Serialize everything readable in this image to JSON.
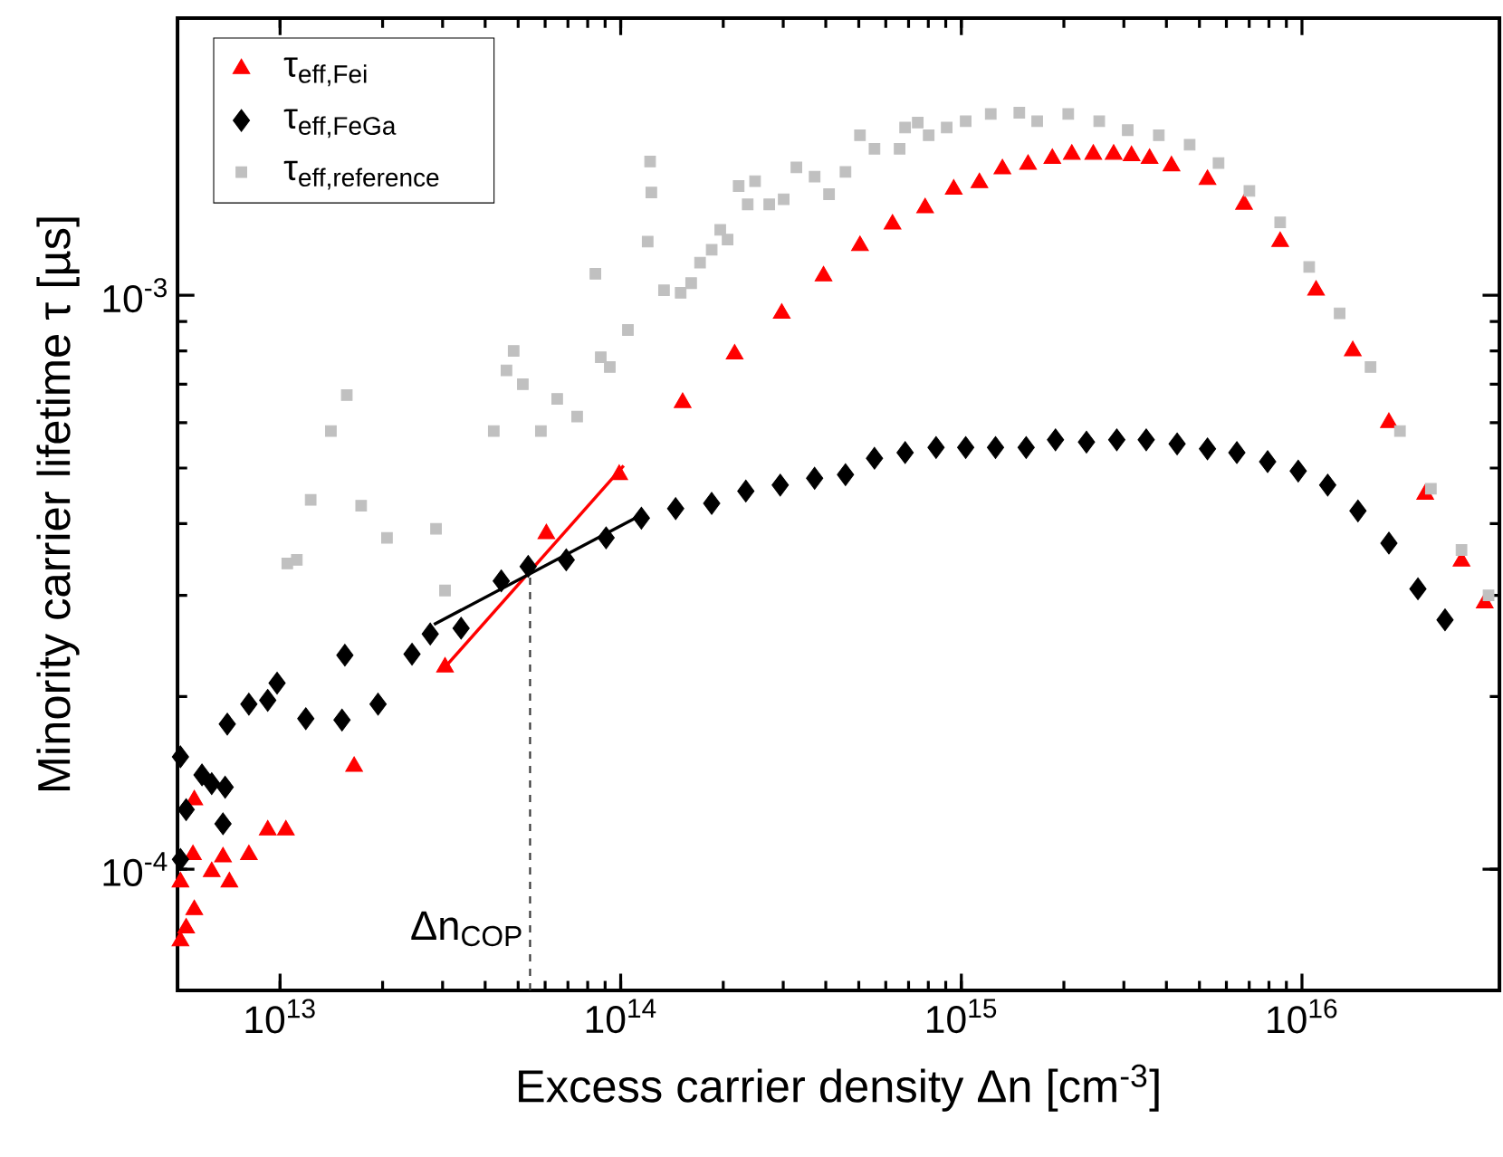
{
  "chart_data": {
    "type": "scatter",
    "xlabel": "Excess carrier density Δn [cm$^{-3}$]",
    "ylabel": "Minority carrier lifetime τ [µs]",
    "log": "xy",
    "xlim": [
      5000000000000.0,
      3.8e+16
    ],
    "ylim": [
      6.15e-05,
      0.00304
    ],
    "xticks": [
      {
        "value": 10000000000000.0,
        "label": "10$^{13}$"
      },
      {
        "value": 100000000000000.0,
        "label": "10$^{14}$"
      },
      {
        "value": 1000000000000000.0,
        "label": "10$^{15}$"
      },
      {
        "value": 1e+16,
        "label": "10$^{16}$"
      }
    ],
    "yticks": [
      {
        "value": 0.0001,
        "label": "10$^{-4}$"
      },
      {
        "value": 0.001,
        "label": "10$^{-3}$"
      }
    ],
    "legend": "top left",
    "series": [
      {
        "name": "\\text{τ}_{\\text{eff,Fei}}",
        "color": "#ff0000",
        "marker": "triangle",
        "x": [
          5100000000000.0,
          5300000000000.0,
          5600000000000.0,
          5100000000000.0,
          5550000000000.0,
          5600000000000.0,
          6300000000000.0,
          6800000000000.0,
          7100000000000.0,
          8100000000000.0,
          9200000000000.0,
          10400000000000.0,
          16500000000000.0,
          30500000000000.0,
          60500000000000.0,
          99000000000000.0,
          152000000000000.0,
          216000000000000.0,
          297000000000000.0,
          394000000000000.0,
          504000000000000.0,
          628000000000000.0,
          783000000000000.0,
          950000000000000.0,
          1130000000000000.0,
          1320000000000000.0,
          1570000000000000.0,
          1850000000000000.0,
          2110000000000000.0,
          2440000000000000.0,
          2800000000000000.0,
          3160000000000000.0,
          3570000000000000.0,
          4140000000000000.0,
          5280000000000000.0,
          6760000000000000.0,
          8630000000000000.0,
          1.1e+16,
          1.41e+16,
          1.8e+16,
          2.3e+16,
          2.94e+16,
          3.44e+16
        ],
        "values": [
          7.5e-05,
          7.9e-05,
          8.5e-05,
          9.5e-05,
          0.000106,
          0.000132,
          9.9e-05,
          0.000105,
          9.5e-05,
          0.000106,
          0.000117,
          0.000117,
          0.000151,
          0.000225,
          0.000384,
          0.000487,
          0.00065,
          0.00079,
          0.00093,
          0.00108,
          0.00122,
          0.00133,
          0.00142,
          0.00153,
          0.00157,
          0.00166,
          0.00169,
          0.00173,
          0.00176,
          0.00176,
          0.00176,
          0.00175,
          0.00173,
          0.00168,
          0.00159,
          0.00144,
          0.00124,
          0.00102,
          0.0008,
          0.0006,
          0.00045,
          0.000344,
          0.000291
        ]
      },
      {
        "name": "\\text{τ}_{\\text{eff,FeGa}}",
        "color": "#000000",
        "marker": "diamond",
        "x": [
          5100000000000.0,
          5300000000000.0,
          5100000000000.0,
          5900000000000.0,
          6300000000000.0,
          6900000000000.0,
          6800000000000.0,
          7000000000000.0,
          8100000000000.0,
          9200000000000.0,
          9800000000000.0,
          11900000000000.0,
          15200000000000.0,
          15500000000000.0,
          19400000000000.0,
          24400000000000.0,
          27600000000000.0,
          34000000000000.0,
          44600000000000.0,
          53500000000000.0,
          69200000000000.0,
          90600000000000.0,
          115000000000000.0,
          145000000000000.0,
          185000000000000.0,
          233000000000000.0,
          294000000000000.0,
          371000000000000.0,
          457000000000000.0,
          556000000000000.0,
          684000000000000.0,
          843000000000000.0,
          1030000000000000.0,
          1260000000000000.0,
          1550000000000000.0,
          1890000000000000.0,
          2330000000000000.0,
          2860000000000000.0,
          3490000000000000.0,
          4300000000000000.0,
          5280000000000000.0,
          6440000000000000.0,
          7930000000000000.0,
          9750000000000000.0,
          1.19e+16,
          1.46e+16,
          1.8e+16,
          2.19e+16,
          2.63e+16
        ],
        "values": [
          0.000157,
          0.000127,
          0.000104,
          0.000146,
          0.000141,
          0.000139,
          0.00012,
          0.000179,
          0.000194,
          0.000197,
          0.000211,
          0.000183,
          0.000182,
          0.000236,
          0.000194,
          0.000237,
          0.000257,
          0.000263,
          0.000318,
          0.000337,
          0.000346,
          0.000378,
          0.000409,
          0.000425,
          0.000434,
          0.000456,
          0.000467,
          0.00048,
          0.000487,
          0.00052,
          0.000532,
          0.000543,
          0.000543,
          0.000543,
          0.000543,
          0.00056,
          0.000555,
          0.00056,
          0.00056,
          0.000551,
          0.00054,
          0.000532,
          0.000513,
          0.000494,
          0.000467,
          0.000421,
          0.00037,
          0.000308,
          0.000272
        ]
      },
      {
        "name": "\\text{τ}_{\\text{eff,reference}}",
        "color": "#c0c0c0",
        "marker": "square",
        "x": [
          10500000000000.0,
          11200000000000.0,
          12300000000000.0,
          14100000000000.0,
          15700000000000.0,
          17300000000000.0,
          20600000000000.0,
          28700000000000.0,
          30500000000000.0,
          42400000000000.0,
          46200000000000.0,
          48500000000000.0,
          51600000000000.0,
          58300000000000.0,
          65100000000000.0,
          74500000000000.0,
          84300000000000.0,
          87400000000000.0,
          92900000000000.0,
          105000000000000.0,
          120000000000000.0,
          122000000000000.0,
          123000000000000.0,
          134000000000000.0,
          150000000000000.0,
          161000000000000.0,
          171000000000000.0,
          185000000000000.0,
          196000000000000.0,
          206000000000000.0,
          222000000000000.0,
          236000000000000.0,
          248000000000000.0,
          273000000000000.0,
          301000000000000.0,
          328000000000000.0,
          371000000000000.0,
          409000000000000.0,
          457000000000000.0,
          504000000000000.0,
          556000000000000.0,
          659000000000000.0,
          684000000000000.0,
          745000000000000.0,
          802000000000000.0,
          906000000000000.0,
          1030000000000000.0,
          1220000000000000.0,
          1480000000000000.0,
          1670000000000000.0,
          2060000000000000.0,
          2540000000000000.0,
          3080000000000000.0,
          3800000000000000.0,
          4680000000000000.0,
          5690000000000000.0,
          7010000000000000.0,
          8630000000000000.0,
          1.05e+16,
          1.29e+16,
          1.59e+16,
          1.94e+16,
          2.39e+16,
          2.94e+16,
          3.53e+16
        ],
        "values": [
          0.000341,
          0.000346,
          0.00044,
          0.00058,
          0.00067,
          0.00043,
          0.000378,
          0.000392,
          0.000306,
          0.00058,
          0.00074,
          0.0008,
          0.0007,
          0.00058,
          0.00066,
          0.000615,
          0.00109,
          0.00078,
          0.00075,
          0.00087,
          0.00124,
          0.00171,
          0.00151,
          0.00102,
          0.00101,
          0.00105,
          0.00114,
          0.0012,
          0.0013,
          0.00125,
          0.00155,
          0.00144,
          0.00158,
          0.00144,
          0.00147,
          0.00167,
          0.00161,
          0.0015,
          0.00164,
          0.0019,
          0.0018,
          0.0018,
          0.00196,
          0.002,
          0.0019,
          0.00196,
          0.00201,
          0.00207,
          0.00208,
          0.00201,
          0.00207,
          0.00201,
          0.00194,
          0.0019,
          0.00183,
          0.0017,
          0.00152,
          0.00134,
          0.00112,
          0.00093,
          0.00075,
          0.00058,
          0.00046,
          0.00036,
          0.0003
        ]
      },
      {
        "type": "line",
        "color": "#ff0000",
        "marker": "none",
        "x": [
          30500000000000.0,
          102000000000000.0
        ],
        "values": [
          0.000225,
          0.000505
        ]
      },
      {
        "type": "line",
        "color": "#000000",
        "marker": "none",
        "x": [
          28300000000000.0,
          113000000000000.0
        ],
        "values": [
          0.000267,
          0.000412
        ]
      },
      {
        "type": "line",
        "color": "#333333",
        "marker": "none",
        "line_style": "dashed",
        "x": [
          54200000000000.0,
          54200000000000.0
        ],
        "values": [
          6.15e-05,
          0.000327
        ]
      }
    ],
    "annotations": [
      "Δn$_{COP}$"
    ]
  }
}
